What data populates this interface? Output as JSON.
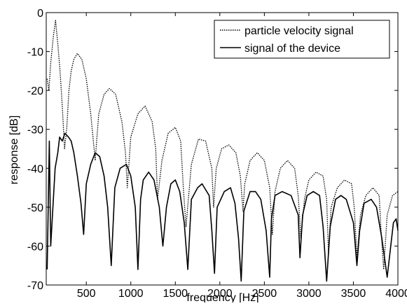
{
  "chart_data": {
    "type": "line",
    "title": "",
    "xlabel": "frequency [Hz]",
    "ylabel": "response [dB]",
    "xlim": [
      50,
      4000
    ],
    "ylim": [
      -70,
      0
    ],
    "xticks": [
      500,
      1000,
      1500,
      2000,
      2500,
      3000,
      3500,
      4000
    ],
    "yticks": [
      0,
      -10,
      -20,
      -30,
      -40,
      -50,
      -60,
      -70
    ],
    "xtick_labels": [
      "500",
      "1000",
      "1500",
      "2000",
      "2500",
      "3000",
      "3500",
      "4000"
    ],
    "ytick_labels": [
      "0",
      "-10",
      "-20",
      "-30",
      "-40",
      "-50",
      "-60",
      "-70"
    ],
    "grid": false,
    "legend_position": "top-right",
    "series": [
      {
        "name": "particle velocity signal",
        "style": "dotted",
        "color": "#000000",
        "x": [
          60,
          80,
          100,
          130,
          155,
          180,
          205,
          230,
          255,
          280,
          305,
          330,
          360,
          400,
          450,
          500,
          550,
          600,
          620,
          640,
          700,
          760,
          830,
          900,
          940,
          960,
          1000,
          1080,
          1160,
          1240,
          1280,
          1300,
          1350,
          1420,
          1500,
          1560,
          1590,
          1620,
          1680,
          1760,
          1840,
          1910,
          1930,
          1960,
          2020,
          2100,
          2180,
          2230,
          2260,
          2280,
          2340,
          2420,
          2500,
          2560,
          2590,
          2620,
          2680,
          2760,
          2840,
          2880,
          2910,
          2950,
          3000,
          3080,
          3160,
          3200,
          3220,
          3250,
          3320,
          3400,
          3480,
          3510,
          3540,
          3580,
          3640,
          3720,
          3790,
          3810,
          3840,
          3880,
          3940,
          4000
        ],
        "y": [
          -17,
          -20,
          -13,
          -6,
          -2,
          -8,
          -15,
          -24,
          -35,
          -30,
          -20,
          -15,
          -12,
          -10.5,
          -12,
          -17,
          -26,
          -38,
          -32,
          -26,
          -21,
          -19.5,
          -21,
          -28,
          -36,
          -45,
          -32,
          -26,
          -24,
          -28,
          -35,
          -48,
          -38,
          -31,
          -29.5,
          -33,
          -45,
          -55,
          -39,
          -32.5,
          -33,
          -40,
          -50,
          -40,
          -35,
          -34,
          -36,
          -42,
          -51,
          -44,
          -38,
          -36,
          -38,
          -45,
          -57,
          -46,
          -40,
          -38,
          -40,
          -47,
          -58,
          -48,
          -43,
          -41,
          -42,
          -48,
          -62,
          -50,
          -45,
          -43,
          -44,
          -50,
          -63,
          -52,
          -47,
          -45,
          -47,
          -56,
          -66,
          -52,
          -47,
          -46
        ]
      },
      {
        "name": "signal of the device",
        "style": "solid",
        "color": "#000000",
        "x": [
          60,
          70,
          85,
          100,
          120,
          150,
          180,
          200,
          230,
          260,
          300,
          330,
          360,
          400,
          440,
          470,
          500,
          550,
          600,
          650,
          700,
          740,
          780,
          820,
          880,
          950,
          1000,
          1050,
          1080,
          1110,
          1140,
          1200,
          1260,
          1320,
          1360,
          1400,
          1450,
          1500,
          1550,
          1600,
          1640,
          1680,
          1750,
          1800,
          1880,
          1910,
          1940,
          1970,
          2050,
          2120,
          2170,
          2210,
          2240,
          2270,
          2340,
          2400,
          2460,
          2520,
          2560,
          2580,
          2620,
          2700,
          2800,
          2880,
          2900,
          2930,
          2980,
          3050,
          3120,
          3160,
          3200,
          3240,
          3300,
          3360,
          3420,
          3500,
          3540,
          3570,
          3620,
          3700,
          3760,
          3820,
          3880,
          3920,
          3950,
          3980,
          4000
        ],
        "y": [
          -66,
          -54,
          -33,
          -60,
          -52,
          -40,
          -36,
          -32,
          -33,
          -31,
          -32,
          -33,
          -36,
          -42,
          -49,
          -57,
          -44,
          -39,
          -36,
          -37,
          -42,
          -50,
          -65,
          -45,
          -40,
          -39,
          -42,
          -50,
          -66,
          -48,
          -43,
          -41,
          -43,
          -50,
          -60,
          -50,
          -44,
          -43,
          -46,
          -54,
          -66,
          -48,
          -45,
          -44,
          -47,
          -56,
          -67,
          -50,
          -46,
          -45,
          -49,
          -58,
          -69,
          -51,
          -46,
          -46,
          -48,
          -56,
          -68,
          -53,
          -47,
          -46,
          -47,
          -52,
          -63,
          -52,
          -47,
          -46,
          -47,
          -55,
          -69,
          -55,
          -48,
          -47,
          -48,
          -54,
          -65,
          -56,
          -49,
          -48,
          -50,
          -58,
          -68,
          -60,
          -54,
          -53,
          -56
        ]
      }
    ]
  }
}
